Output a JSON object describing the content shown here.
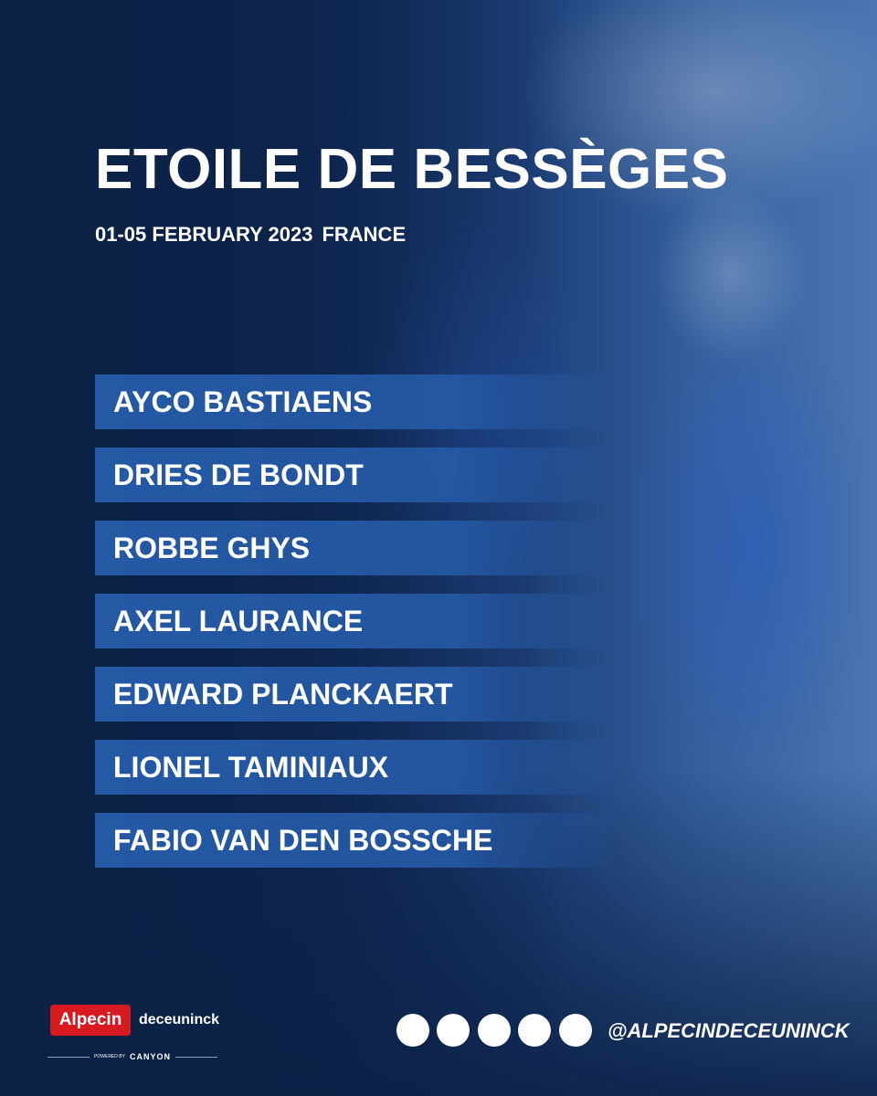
{
  "header": {
    "title": "ETOILE DE BESSÈGES",
    "dates": "01-05 FEBRUARY 2023",
    "country": "FRANCE"
  },
  "riders": [
    "AYCO BASTIAENS",
    "DRIES DE BONDT",
    "ROBBE GHYS",
    "AXEL LAURANCE",
    "EDWARD PLANCKAERT",
    "LIONEL TAMINIAUX",
    "FABIO VAN DEN BOSSCHE"
  ],
  "footer": {
    "sponsor_1": "Alpecin",
    "sponsor_2": "deceuninck",
    "powered_by": "POWERED BY",
    "bike_brand": "CANYON",
    "handle": "@ALPECINDECEUNINCK"
  }
}
